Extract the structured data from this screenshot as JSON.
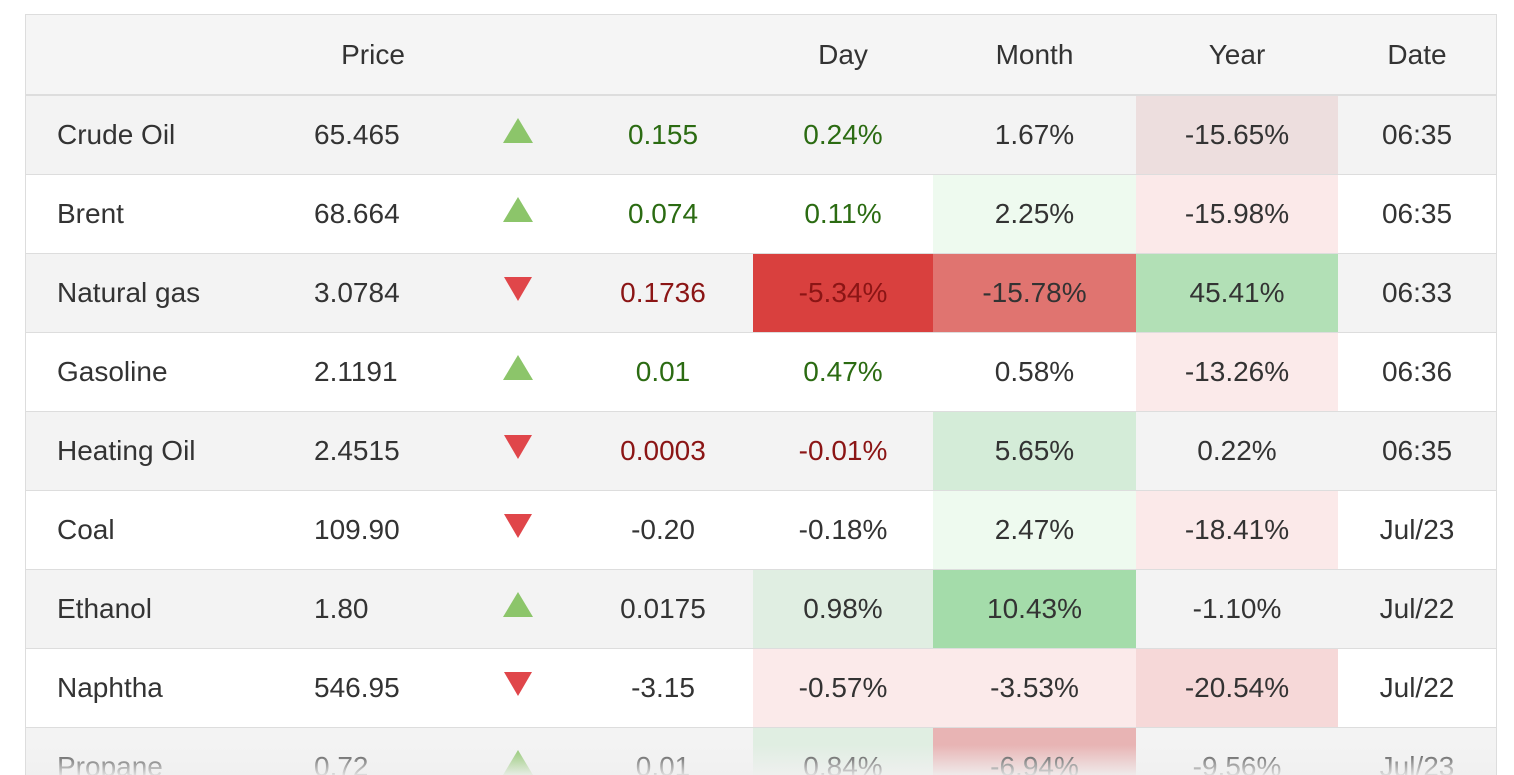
{
  "headers": {
    "name": "",
    "price": "Price",
    "arrow": "",
    "change": "",
    "day": "Day",
    "month": "Month",
    "year": "Year",
    "date": "Date"
  },
  "colors": {
    "up_arrow": "#8cc56a",
    "down_arrow": "#e0464a",
    "positive_text": "#2b6b12",
    "negative_text": "#8b1515"
  },
  "rows": [
    {
      "name": "Crude Oil",
      "price": "65.465",
      "direction": "up",
      "change": "0.155",
      "day": "0.24%",
      "month": "1.67%",
      "year": "-15.65%",
      "date": "06:35",
      "tone": "pos",
      "day_bg": "",
      "month_bg": "",
      "year_bg": "#eddede"
    },
    {
      "name": "Brent",
      "price": "68.664",
      "direction": "up",
      "change": "0.074",
      "day": "0.11%",
      "month": "2.25%",
      "year": "-15.98%",
      "date": "06:35",
      "tone": "pos",
      "day_bg": "",
      "month_bg": "#eefaef",
      "year_bg": "#fbe9e9"
    },
    {
      "name": "Natural gas",
      "price": "3.0784",
      "direction": "down",
      "change": "0.1736",
      "day": "-5.34%",
      "month": "-15.78%",
      "year": "45.41%",
      "date": "06:33",
      "tone": "neg",
      "day_bg": "#d9403e",
      "month_bg": "#e07470",
      "year_bg": "#b2e0b6"
    },
    {
      "name": "Gasoline",
      "price": "2.1191",
      "direction": "up",
      "change": "0.01",
      "day": "0.47%",
      "month": "0.58%",
      "year": "-13.26%",
      "date": "06:36",
      "tone": "pos",
      "day_bg": "",
      "month_bg": "",
      "year_bg": "#fbeaea"
    },
    {
      "name": "Heating Oil",
      "price": "2.4515",
      "direction": "down",
      "change": "0.0003",
      "day": "-0.01%",
      "month": "5.65%",
      "year": "0.22%",
      "date": "06:35",
      "tone": "neg",
      "day_bg": "",
      "month_bg": "#d4ecd8",
      "year_bg": ""
    },
    {
      "name": "Coal",
      "price": "109.90",
      "direction": "down",
      "change": "-0.20",
      "day": "-0.18%",
      "month": "2.47%",
      "year": "-18.41%",
      "date": "Jul/23",
      "tone": "dark",
      "day_bg": "",
      "month_bg": "#eefaef",
      "year_bg": "#fbe9e9"
    },
    {
      "name": "Ethanol",
      "price": "1.80",
      "direction": "up",
      "change": "0.0175",
      "day": "0.98%",
      "month": "10.43%",
      "year": "-1.10%",
      "date": "Jul/22",
      "tone": "dark",
      "day_bg": "#e0eee2",
      "month_bg": "#a4dcaa",
      "year_bg": ""
    },
    {
      "name": "Naphtha",
      "price": "546.95",
      "direction": "down",
      "change": "-3.15",
      "day": "-0.57%",
      "month": "-3.53%",
      "year": "-20.54%",
      "date": "Jul/22",
      "tone": "dark",
      "day_bg": "#fbeaea",
      "month_bg": "#fbeaea",
      "year_bg": "#f6d8d8"
    },
    {
      "name": "Propane",
      "price": "0.72",
      "direction": "up",
      "change": "0.01",
      "day": "0.84%",
      "month": "-6.94%",
      "year": "-9.56%",
      "date": "Jul/23",
      "tone": "dark",
      "day_bg": "#e0eee2",
      "month_bg": "#e8b4b4",
      "year_bg": ""
    }
  ]
}
